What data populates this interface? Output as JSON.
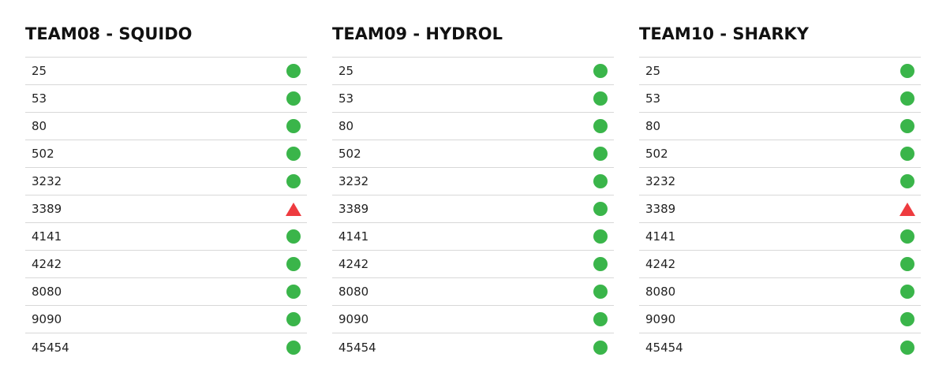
{
  "colors": {
    "up": "#3ab54a",
    "down": "#ee3b3f"
  },
  "teams": [
    {
      "title": "TEAM08 - SQUIDO",
      "ports": [
        {
          "port": "25",
          "status": "up",
          "icon": "green-circle-icon"
        },
        {
          "port": "53",
          "status": "up",
          "icon": "green-circle-icon"
        },
        {
          "port": "80",
          "status": "up",
          "icon": "green-circle-icon"
        },
        {
          "port": "502",
          "status": "up",
          "icon": "green-circle-icon"
        },
        {
          "port": "3232",
          "status": "up",
          "icon": "green-circle-icon"
        },
        {
          "port": "3389",
          "status": "down",
          "icon": "red-triangle-icon"
        },
        {
          "port": "4141",
          "status": "up",
          "icon": "green-circle-icon"
        },
        {
          "port": "4242",
          "status": "up",
          "icon": "green-circle-icon"
        },
        {
          "port": "8080",
          "status": "up",
          "icon": "green-circle-icon"
        },
        {
          "port": "9090",
          "status": "up",
          "icon": "green-circle-icon"
        },
        {
          "port": "45454",
          "status": "up",
          "icon": "green-circle-icon"
        }
      ]
    },
    {
      "title": "TEAM09 - HYDROL",
      "ports": [
        {
          "port": "25",
          "status": "up",
          "icon": "green-circle-icon"
        },
        {
          "port": "53",
          "status": "up",
          "icon": "green-circle-icon"
        },
        {
          "port": "80",
          "status": "up",
          "icon": "green-circle-icon"
        },
        {
          "port": "502",
          "status": "up",
          "icon": "green-circle-icon"
        },
        {
          "port": "3232",
          "status": "up",
          "icon": "green-circle-icon"
        },
        {
          "port": "3389",
          "status": "up",
          "icon": "green-circle-icon"
        },
        {
          "port": "4141",
          "status": "up",
          "icon": "green-circle-icon"
        },
        {
          "port": "4242",
          "status": "up",
          "icon": "green-circle-icon"
        },
        {
          "port": "8080",
          "status": "up",
          "icon": "green-circle-icon"
        },
        {
          "port": "9090",
          "status": "up",
          "icon": "green-circle-icon"
        },
        {
          "port": "45454",
          "status": "up",
          "icon": "green-circle-icon"
        }
      ]
    },
    {
      "title": "TEAM10 - SHARKY",
      "ports": [
        {
          "port": "25",
          "status": "up",
          "icon": "green-circle-icon"
        },
        {
          "port": "53",
          "status": "up",
          "icon": "green-circle-icon"
        },
        {
          "port": "80",
          "status": "up",
          "icon": "green-circle-icon"
        },
        {
          "port": "502",
          "status": "up",
          "icon": "green-circle-icon"
        },
        {
          "port": "3232",
          "status": "up",
          "icon": "green-circle-icon"
        },
        {
          "port": "3389",
          "status": "down",
          "icon": "red-triangle-icon"
        },
        {
          "port": "4141",
          "status": "up",
          "icon": "green-circle-icon"
        },
        {
          "port": "4242",
          "status": "up",
          "icon": "green-circle-icon"
        },
        {
          "port": "8080",
          "status": "up",
          "icon": "green-circle-icon"
        },
        {
          "port": "9090",
          "status": "up",
          "icon": "green-circle-icon"
        },
        {
          "port": "45454",
          "status": "up",
          "icon": "green-circle-icon"
        }
      ]
    }
  ]
}
